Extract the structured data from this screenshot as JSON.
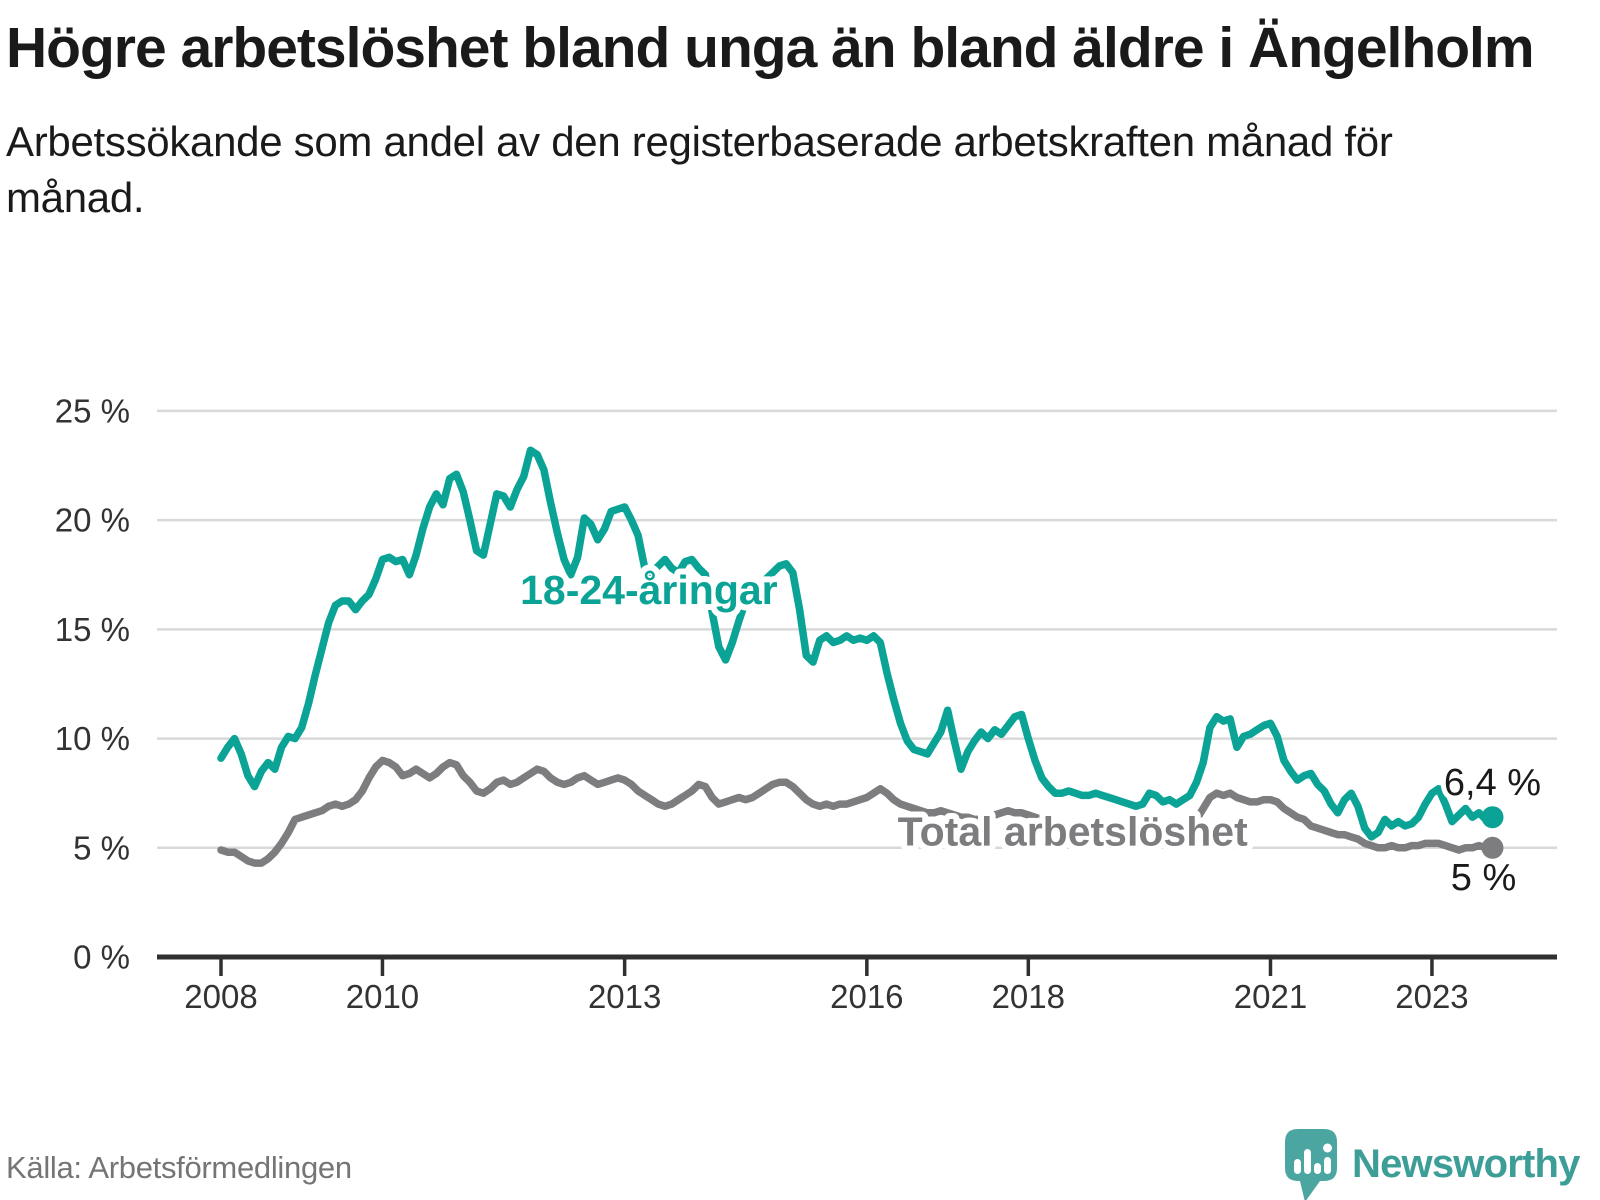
{
  "header": {
    "title": "Högre arbetslöshet bland unga än bland äldre i Ängelholm",
    "subtitle": "Arbetssökande som andel av den registerbaserade arbetskraften månad för månad."
  },
  "footer": {
    "source": "Källa: Arbetsförmedlingen",
    "brand": "Newsworthy"
  },
  "colors": {
    "young": "#0aa396",
    "total": "#7d7d80",
    "axis": "#333333",
    "grid": "#d9d9d9",
    "annotation": "#1a1a1a"
  },
  "chart_data": {
    "type": "line",
    "unit": "%",
    "x_start": "2008-01",
    "x_end": "2023-10",
    "points_per_year": 12,
    "x_ticks": [
      2008,
      2010,
      2013,
      2016,
      2018,
      2021,
      2023
    ],
    "y_ticks": [
      0,
      5,
      10,
      15,
      20,
      25
    ],
    "y_tick_suffix": " %",
    "ylim": [
      0,
      25
    ],
    "grid": "horizontal",
    "legend_position": "inline-labels",
    "series": [
      {
        "name": "Total arbetslöshet",
        "color": "#7d7d80",
        "end_label": "5 %",
        "end_label_position": "below",
        "label_anchor": {
          "year": 2018.55,
          "value": 5.75
        },
        "values": [
          4.9,
          4.8,
          4.8,
          4.6,
          4.4,
          4.3,
          4.3,
          4.5,
          4.8,
          5.2,
          5.7,
          6.3,
          6.4,
          6.5,
          6.6,
          6.7,
          6.9,
          7.0,
          6.9,
          7.0,
          7.2,
          7.6,
          8.2,
          8.7,
          9.0,
          8.9,
          8.7,
          8.3,
          8.4,
          8.6,
          8.4,
          8.2,
          8.4,
          8.7,
          8.9,
          8.8,
          8.3,
          8.0,
          7.6,
          7.5,
          7.7,
          8.0,
          8.1,
          7.9,
          8.0,
          8.2,
          8.4,
          8.6,
          8.5,
          8.2,
          8.0,
          7.9,
          8.0,
          8.2,
          8.3,
          8.1,
          7.9,
          8.0,
          8.1,
          8.2,
          8.1,
          7.9,
          7.6,
          7.4,
          7.2,
          7.0,
          6.9,
          7.0,
          7.2,
          7.4,
          7.6,
          7.9,
          7.8,
          7.3,
          7.0,
          7.1,
          7.2,
          7.3,
          7.2,
          7.3,
          7.5,
          7.7,
          7.9,
          8.0,
          8.0,
          7.8,
          7.5,
          7.2,
          7.0,
          6.9,
          7.0,
          6.9,
          7.0,
          7.0,
          7.1,
          7.2,
          7.3,
          7.5,
          7.7,
          7.5,
          7.2,
          7.0,
          6.9,
          6.8,
          6.7,
          6.6,
          6.6,
          6.7,
          6.6,
          6.5,
          6.4,
          6.4,
          6.3,
          6.3,
          6.4,
          6.5,
          6.6,
          6.7,
          6.6,
          6.6,
          6.5,
          6.4,
          6.3,
          6.2,
          6.1,
          6.0,
          6.0,
          6.0,
          5.9,
          5.9,
          6.0,
          6.0,
          6.0,
          5.9,
          5.9,
          5.8,
          5.8,
          5.9,
          6.0,
          6.0,
          5.9,
          5.9,
          6.0,
          6.1,
          6.2,
          6.3,
          6.8,
          7.3,
          7.5,
          7.4,
          7.5,
          7.3,
          7.2,
          7.1,
          7.1,
          7.2,
          7.2,
          7.1,
          6.8,
          6.6,
          6.4,
          6.3,
          6.0,
          5.9,
          5.8,
          5.7,
          5.6,
          5.6,
          5.5,
          5.4,
          5.2,
          5.1,
          5.0,
          5.0,
          5.1,
          5.0,
          5.0,
          5.1,
          5.1,
          5.2,
          5.2,
          5.2,
          5.1,
          5.0,
          4.9,
          5.0,
          5.0,
          5.1,
          5.0,
          5.0
        ]
      },
      {
        "name": "18-24-åringar",
        "color": "#0aa396",
        "end_label": "6,4 %",
        "end_label_position": "above",
        "label_anchor": {
          "year": 2013.3,
          "value": 16.8
        },
        "values": [
          9.1,
          9.6,
          10.0,
          9.3,
          8.3,
          7.8,
          8.5,
          8.9,
          8.6,
          9.6,
          10.1,
          10.0,
          10.5,
          11.6,
          12.9,
          14.1,
          15.3,
          16.1,
          16.3,
          16.3,
          15.9,
          16.3,
          16.6,
          17.3,
          18.2,
          18.3,
          18.1,
          18.2,
          17.5,
          18.4,
          19.6,
          20.6,
          21.2,
          20.7,
          21.9,
          22.1,
          21.3,
          20.0,
          18.6,
          18.4,
          19.8,
          21.2,
          21.1,
          20.6,
          21.4,
          22.0,
          23.2,
          23.0,
          22.3,
          20.8,
          19.4,
          18.2,
          17.5,
          18.3,
          20.1,
          19.8,
          19.1,
          19.6,
          20.4,
          20.5,
          20.6,
          20.0,
          19.3,
          17.8,
          17.6,
          17.9,
          18.2,
          17.8,
          17.6,
          18.1,
          18.2,
          17.8,
          17.5,
          15.8,
          14.2,
          13.6,
          14.4,
          15.4,
          16.3,
          16.8,
          17.0,
          17.3,
          17.6,
          17.9,
          18.0,
          17.6,
          15.9,
          13.8,
          13.5,
          14.5,
          14.7,
          14.4,
          14.5,
          14.7,
          14.5,
          14.6,
          14.5,
          14.7,
          14.4,
          13.0,
          11.8,
          10.7,
          9.9,
          9.5,
          9.4,
          9.3,
          9.8,
          10.3,
          11.3,
          9.9,
          8.6,
          9.4,
          9.9,
          10.3,
          10.0,
          10.4,
          10.2,
          10.6,
          11.0,
          11.1,
          10.0,
          9.0,
          8.2,
          7.8,
          7.5,
          7.5,
          7.6,
          7.5,
          7.4,
          7.4,
          7.5,
          7.4,
          7.3,
          7.2,
          7.1,
          7.0,
          6.9,
          7.0,
          7.5,
          7.4,
          7.1,
          7.2,
          7.0,
          7.2,
          7.4,
          8.0,
          8.9,
          10.5,
          11.0,
          10.8,
          10.9,
          9.6,
          10.1,
          10.2,
          10.4,
          10.6,
          10.7,
          10.1,
          9.0,
          8.5,
          8.1,
          8.3,
          8.4,
          7.9,
          7.6,
          7.0,
          6.6,
          7.2,
          7.5,
          6.9,
          5.9,
          5.5,
          5.7,
          6.3,
          6.0,
          6.2,
          6.0,
          6.1,
          6.4,
          7.0,
          7.5,
          7.7,
          7.0,
          6.2,
          6.5,
          6.8,
          6.4,
          6.6,
          6.3,
          6.4
        ]
      }
    ]
  }
}
